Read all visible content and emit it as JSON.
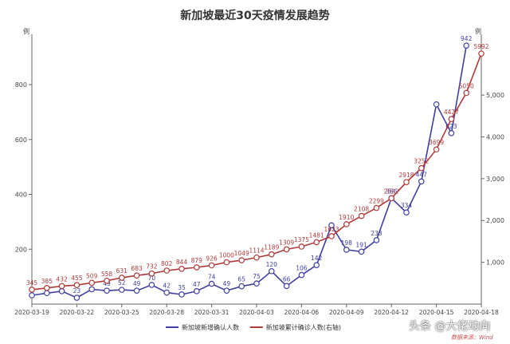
{
  "chart_data": {
    "type": "line",
    "title": "新加坡最近30天疫情发展趋势",
    "y_left_label": "例",
    "y_right_label": "例",
    "y_left_ticks": [
      "200",
      "400",
      "600",
      "800"
    ],
    "y_right_ticks": [
      "1,000",
      "2,000",
      "3,000",
      "4,000",
      "5,000"
    ],
    "y_left_lim": [
      0,
      960
    ],
    "y_right_lim": [
      0,
      6300
    ],
    "x": [
      "2020-03-19",
      "2020-03-20",
      "2020-03-21",
      "2020-03-22",
      "2020-03-23",
      "2020-03-24",
      "2020-03-25",
      "2020-03-26",
      "2020-03-27",
      "2020-03-28",
      "2020-03-29",
      "2020-03-30",
      "2020-03-31",
      "2020-04-01",
      "2020-04-02",
      "2020-04-03",
      "2020-04-04",
      "2020-04-05",
      "2020-04-06",
      "2020-04-07",
      "2020-04-08",
      "2020-04-09",
      "2020-04-10",
      "2020-04-11",
      "2020-04-12",
      "2020-04-13",
      "2020-04-14",
      "2020-04-15",
      "2020-04-16",
      "2020-04-17",
      "2020-04-18"
    ],
    "x_tick_labels": [
      "2020-03-19",
      "2020-03-22",
      "2020-03-25",
      "2020-03-28",
      "2020-03-31",
      "2020-04-03",
      "2020-04-06",
      "2020-04-09",
      "2020-04-12",
      "2020-04-15",
      "2020-04-18"
    ],
    "x_tick_every": 3,
    "series": [
      {
        "name": "新加坡新增确认人数",
        "axis": "left",
        "color": "#4040a0",
        "values": [
          32,
          40,
          47,
          23,
          54,
          49,
          52,
          49,
          70,
          42,
          35,
          47,
          74,
          49,
          65,
          75,
          120,
          66,
          106,
          142,
          287,
          198,
          191,
          233,
          386,
          334,
          447,
          728,
          623,
          942,
          null
        ],
        "labels": [
          "",
          "",
          "",
          "23",
          "",
          "49",
          "52",
          "49",
          "70",
          "42",
          "35",
          "47",
          "74",
          "49",
          "65",
          "75",
          "120",
          "66",
          "106",
          "142",
          "",
          "198",
          "191",
          "233",
          "386",
          "334",
          "447",
          "",
          "623",
          "942",
          ""
        ]
      },
      {
        "name": "新加坡累计确诊人数(右轴)",
        "axis": "right",
        "color": "#b03a3a",
        "values": [
          345,
          385,
          432,
          455,
          509,
          558,
          631,
          683,
          732,
          802,
          844,
          879,
          926,
          1000,
          1049,
          1114,
          1189,
          1309,
          1375,
          1481,
          1623,
          1910,
          2108,
          2299,
          2532,
          2918,
          3252,
          3699,
          4427,
          5050,
          5992
        ],
        "labels": [
          "345",
          "385",
          "432",
          "455",
          "509",
          "558",
          "631",
          "683",
          "732",
          "802",
          "844",
          "879",
          "926",
          "1000",
          "1049",
          "1114",
          "1189",
          "1309",
          "1375",
          "1481",
          "1623",
          "1910",
          "2108",
          "2299",
          "2532",
          "2918",
          "3252",
          "3699",
          "4427",
          "5050",
          "5992"
        ]
      }
    ],
    "grid": false,
    "legend": "bottom"
  },
  "watermark": {
    "main": "头条 @大佬动向",
    "source": "数据来源：Wind"
  }
}
